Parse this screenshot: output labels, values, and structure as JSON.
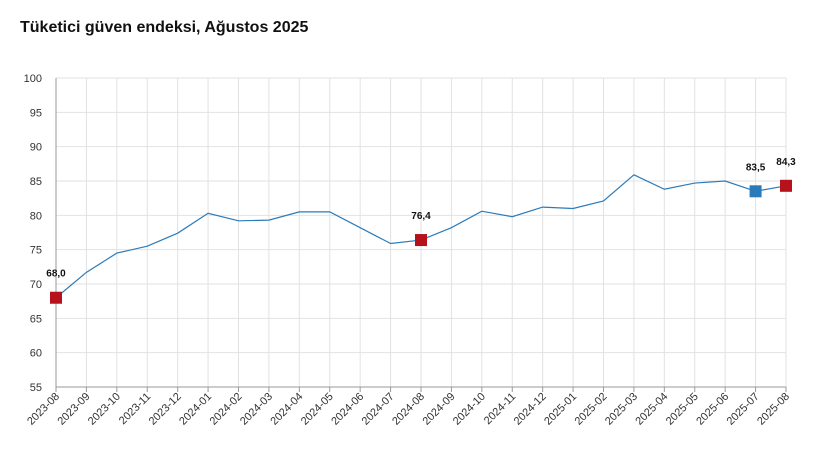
{
  "chart_data": {
    "type": "line",
    "title": "Tüketici güven endeksi, Ağustos 2025",
    "xlabel": "",
    "ylabel": "",
    "ylim": [
      55,
      100
    ],
    "yticks": [
      55,
      60,
      65,
      70,
      75,
      80,
      85,
      90,
      95,
      100
    ],
    "grid": true,
    "categories": [
      "2023-08",
      "2023-09",
      "2023-10",
      "2023-11",
      "2023-12",
      "2024-01",
      "2024-02",
      "2024-03",
      "2024-04",
      "2024-05",
      "2024-06",
      "2024-07",
      "2024-08",
      "2024-09",
      "2024-10",
      "2024-11",
      "2024-12",
      "2025-01",
      "2025-02",
      "2025-03",
      "2025-04",
      "2025-05",
      "2025-06",
      "2025-07",
      "2025-08"
    ],
    "values": [
      68.0,
      71.7,
      74.5,
      75.5,
      77.4,
      80.3,
      79.2,
      79.3,
      80.5,
      80.5,
      78.2,
      75.9,
      76.4,
      78.2,
      80.6,
      79.8,
      81.2,
      81.0,
      82.1,
      85.9,
      83.8,
      84.7,
      85.0,
      83.5,
      84.3
    ],
    "line_color": "#2b7bba",
    "highlights": [
      {
        "index": 0,
        "label": "68,0",
        "color": "#b5121b"
      },
      {
        "index": 12,
        "label": "76,4",
        "color": "#b5121b"
      },
      {
        "index": 23,
        "label": "83,5",
        "color": "#2b7bba"
      },
      {
        "index": 24,
        "label": "84,3",
        "color": "#b5121b"
      }
    ]
  }
}
